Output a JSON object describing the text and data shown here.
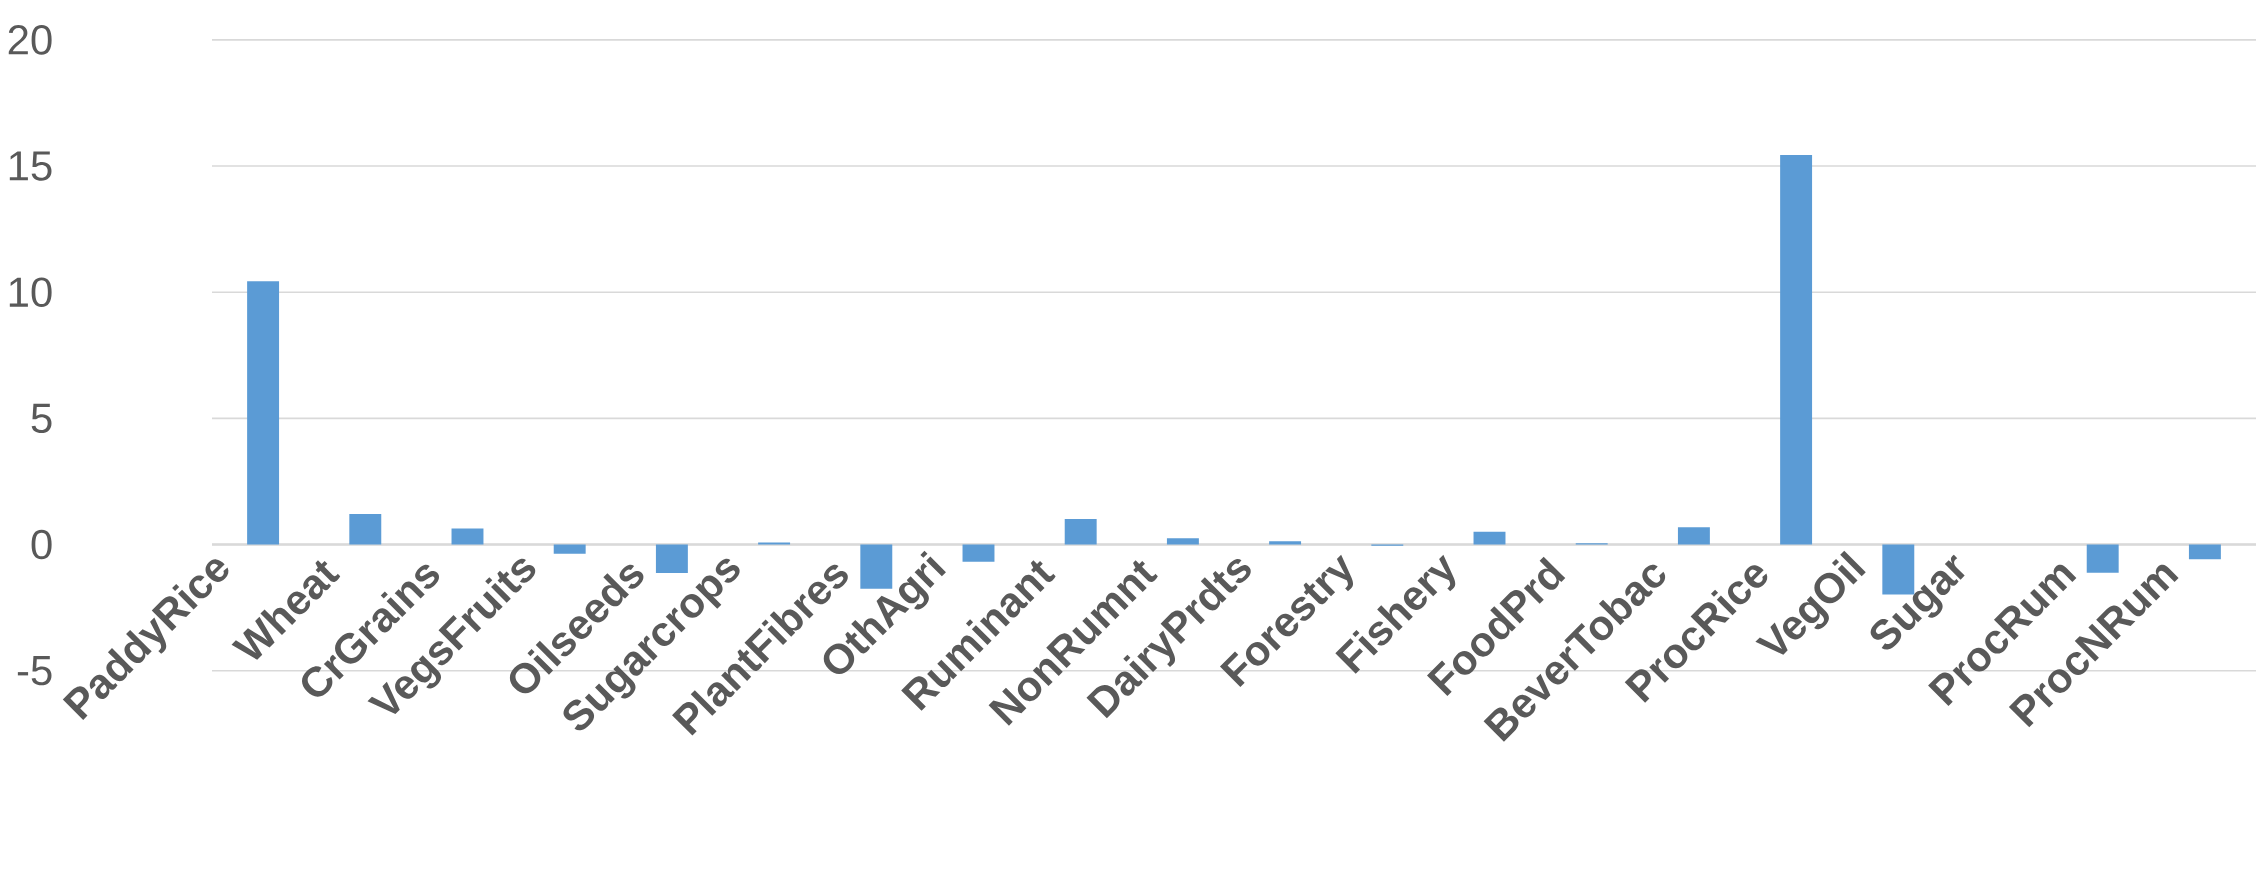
{
  "chart_data": {
    "type": "bar",
    "categories": [
      "PaddyRice",
      "Wheat",
      "CrGrains",
      "VegsFruits",
      "Oilseeds",
      "Sugarcrops",
      "PlantFibres",
      "OthAgri",
      "Ruminant",
      "NonRumnt",
      "DairyPrdts",
      "Forestry",
      "Fishery",
      "FoodPrd",
      "BeverTobac",
      "ProcRice",
      "VegOil",
      "Sugar",
      "ProcRum",
      "ProcNRum"
    ],
    "values": [
      10.43,
      1.21,
      0.64,
      -0.37,
      -1.13,
      0.08,
      -1.75,
      -0.68,
      1.01,
      0.25,
      0.13,
      -0.05,
      0.51,
      0.05,
      0.69,
      15.44,
      -1.98,
      0,
      -1.12,
      -0.58
    ],
    "color": "#5b9bd5",
    "ylim": [
      -5,
      20
    ],
    "yticks": [
      -5,
      0,
      5,
      10,
      15,
      20
    ],
    "grid": "y"
  }
}
